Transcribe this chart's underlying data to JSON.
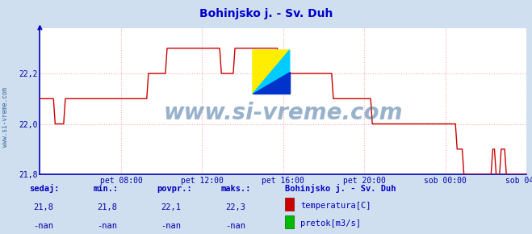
{
  "title": "Bohinjsko j. - Sv. Duh",
  "title_color": "#0000cc",
  "title_fontsize": 10,
  "bg_color": "#d0dff0",
  "plot_bg_color": "#ffffff",
  "grid_color": "#ffaaaa",
  "grid_linestyle": "dotted",
  "axis_color": "#0000bb",
  "tick_color": "#0000aa",
  "tick_fontsize": 7,
  "ylim": [
    21.8,
    22.38
  ],
  "yticks": [
    21.8,
    22.0,
    22.2
  ],
  "ytick_labels": [
    "21,8",
    "22,0",
    "22,2"
  ],
  "xtick_labels": [
    "pet 08:00",
    "pet 12:00",
    "pet 16:00",
    "pet 20:00",
    "sob 00:00",
    "sob 04:00"
  ],
  "xtick_positions": [
    0.1667,
    0.3333,
    0.5,
    0.6667,
    0.8333,
    1.0
  ],
  "line_color": "#cc0000",
  "line_width": 1.0,
  "watermark": "www.si-vreme.com",
  "watermark_color": "#336699",
  "watermark_fontsize": 20,
  "watermark_alpha": 0.5,
  "footer_label_color": "#0000bb",
  "footer_value_color": "#0000aa",
  "sedaj_label": "sedaj:",
  "min_label": "min.:",
  "povpr_label": "povpr.:",
  "maks_label": "maks.:",
  "sedaj_val": "21,8",
  "min_val": "21,8",
  "povpr_val": "22,1",
  "maks_val": "22,3",
  "station_label": "Bohinjsko j. - Sv. Duh",
  "legend1_color": "#cc0000",
  "legend1_label": "temperatura[C]",
  "legend2_color": "#00bb00",
  "legend2_label": "pretok[m3/s]",
  "nan_val": "-nan",
  "sidebar_text": "www.si-vreme.com",
  "sidebar_color": "#336699",
  "logo_yellow": "#ffee00",
  "logo_blue": "#0033cc",
  "logo_cyan": "#00ccff"
}
